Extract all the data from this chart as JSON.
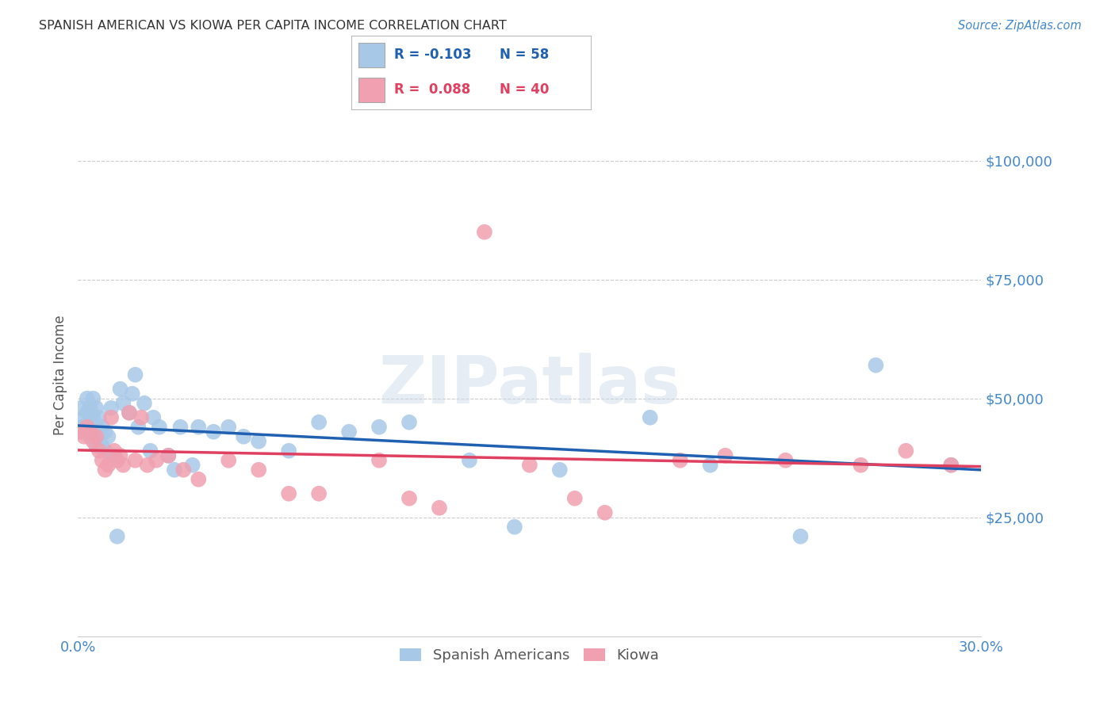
{
  "title": "SPANISH AMERICAN VS KIOWA PER CAPITA INCOME CORRELATION CHART",
  "source": "Source: ZipAtlas.com",
  "ylabel": "Per Capita Income",
  "xlim": [
    0.0,
    0.3
  ],
  "ylim": [
    0,
    110000
  ],
  "yticks": [
    0,
    25000,
    50000,
    75000,
    100000
  ],
  "ytick_labels": [
    "",
    "$25,000",
    "$50,000",
    "$75,000",
    "$100,000"
  ],
  "xticks": [
    0.0,
    0.05,
    0.1,
    0.15,
    0.2,
    0.25,
    0.3
  ],
  "xtick_labels": [
    "0.0%",
    "",
    "",
    "",
    "",
    "",
    "30.0%"
  ],
  "background_color": "#ffffff",
  "grid_color": "#cccccc",
  "watermark": "ZIPatlas",
  "blue_color": "#a8c8e8",
  "pink_color": "#f0a0b0",
  "line_blue": "#2060b0",
  "line_pink": "#e04060",
  "legend_R_blue": "-0.103",
  "legend_N_blue": "58",
  "legend_R_pink": "0.088",
  "legend_N_pink": "40",
  "axis_label_color": "#4488cc",
  "title_color": "#333333",
  "blue_scatter_x": [
    0.001,
    0.001,
    0.002,
    0.002,
    0.003,
    0.003,
    0.003,
    0.004,
    0.004,
    0.004,
    0.005,
    0.005,
    0.005,
    0.006,
    0.006,
    0.006,
    0.007,
    0.007,
    0.008,
    0.008,
    0.009,
    0.009,
    0.01,
    0.011,
    0.012,
    0.013,
    0.014,
    0.015,
    0.017,
    0.018,
    0.019,
    0.02,
    0.022,
    0.024,
    0.025,
    0.027,
    0.03,
    0.032,
    0.034,
    0.038,
    0.04,
    0.045,
    0.05,
    0.055,
    0.06,
    0.07,
    0.08,
    0.09,
    0.1,
    0.11,
    0.13,
    0.145,
    0.16,
    0.19,
    0.21,
    0.24,
    0.265,
    0.29
  ],
  "blue_scatter_y": [
    44000,
    48000,
    46000,
    43000,
    50000,
    47000,
    44000,
    48000,
    45000,
    42000,
    50000,
    46000,
    43000,
    48000,
    44000,
    40000,
    46000,
    43000,
    44000,
    40000,
    43000,
    39000,
    42000,
    48000,
    38000,
    21000,
    52000,
    49000,
    47000,
    51000,
    55000,
    44000,
    49000,
    39000,
    46000,
    44000,
    38000,
    35000,
    44000,
    36000,
    44000,
    43000,
    44000,
    42000,
    41000,
    39000,
    45000,
    43000,
    44000,
    45000,
    37000,
    23000,
    35000,
    46000,
    36000,
    21000,
    57000,
    36000
  ],
  "pink_scatter_x": [
    0.001,
    0.002,
    0.003,
    0.004,
    0.005,
    0.006,
    0.007,
    0.008,
    0.009,
    0.01,
    0.011,
    0.012,
    0.013,
    0.014,
    0.015,
    0.017,
    0.019,
    0.021,
    0.023,
    0.026,
    0.03,
    0.035,
    0.04,
    0.05,
    0.06,
    0.07,
    0.08,
    0.1,
    0.11,
    0.12,
    0.135,
    0.15,
    0.165,
    0.175,
    0.2,
    0.215,
    0.235,
    0.26,
    0.275,
    0.29
  ],
  "pink_scatter_y": [
    43000,
    42000,
    44000,
    43000,
    41000,
    42000,
    39000,
    37000,
    35000,
    36000,
    46000,
    39000,
    37000,
    38000,
    36000,
    47000,
    37000,
    46000,
    36000,
    37000,
    38000,
    35000,
    33000,
    37000,
    35000,
    30000,
    30000,
    37000,
    29000,
    27000,
    85000,
    36000,
    29000,
    26000,
    37000,
    38000,
    37000,
    36000,
    39000,
    36000
  ]
}
